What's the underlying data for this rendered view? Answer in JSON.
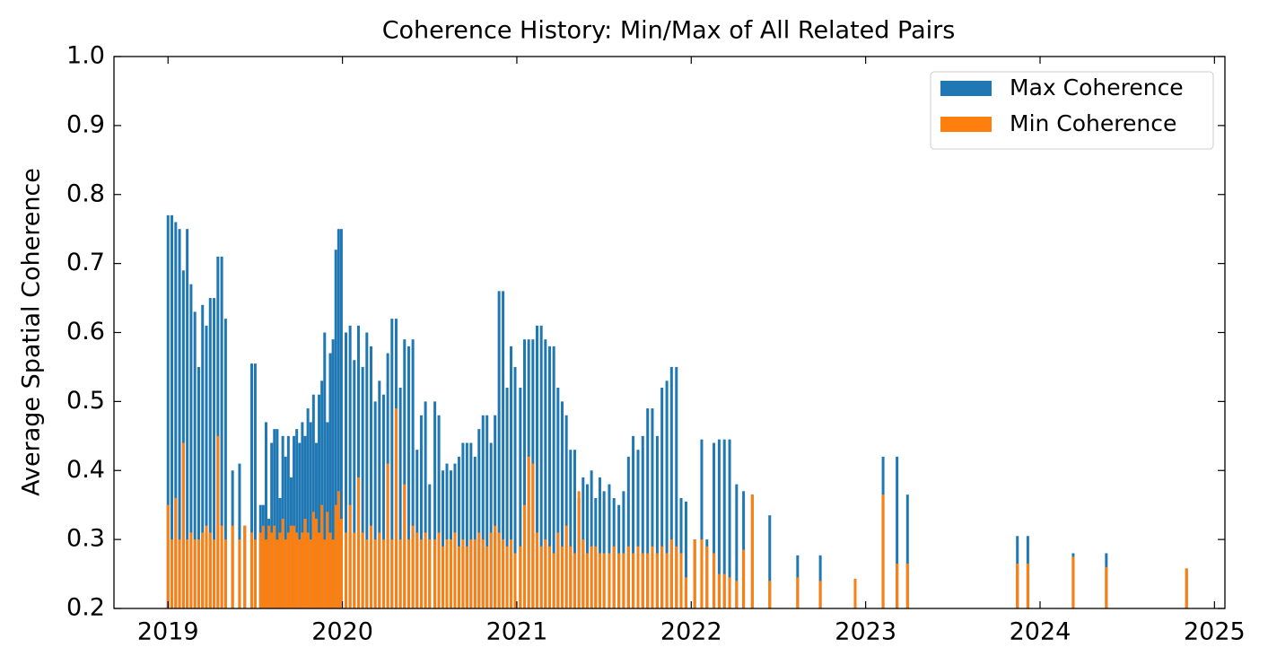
{
  "chart_data": {
    "type": "bar",
    "title": "Coherence History: Min/Max of All Related Pairs",
    "y_label": "Average Spatial Coherence",
    "x": [
      2019,
      2019.022,
      2019.044,
      2019.066,
      2019.088,
      2019.11,
      2019.132,
      2019.154,
      2019.176,
      2019.198,
      2019.22,
      2019.242,
      2019.264,
      2019.286,
      2019.308,
      2019.33,
      2019.37,
      2019.41,
      2019.44,
      2019.48,
      2019.5,
      2019.53,
      2019.546,
      2019.562,
      2019.578,
      2019.594,
      2019.61,
      2019.626,
      2019.642,
      2019.658,
      2019.674,
      2019.69,
      2019.706,
      2019.722,
      2019.738,
      2019.754,
      2019.77,
      2019.786,
      2019.802,
      2019.818,
      2019.834,
      2019.85,
      2019.866,
      2019.882,
      2019.898,
      2019.914,
      2019.93,
      2019.946,
      2019.962,
      2019.978,
      2019.994,
      2020.02,
      2020.044,
      2020.068,
      2020.092,
      2020.116,
      2020.14,
      2020.164,
      2020.188,
      2020.212,
      2020.236,
      2020.26,
      2020.284,
      2020.308,
      2020.332,
      2020.356,
      2020.38,
      2020.404,
      2020.428,
      2020.452,
      2020.476,
      2020.5,
      2020.53,
      2020.553,
      2020.576,
      2020.599,
      2020.622,
      2020.645,
      2020.668,
      2020.691,
      2020.714,
      2020.737,
      2020.76,
      2020.783,
      2020.806,
      2020.829,
      2020.852,
      2020.875,
      2020.898,
      2020.921,
      2020.944,
      2020.967,
      2020.99,
      2021.02,
      2021.044,
      2021.068,
      2021.092,
      2021.116,
      2021.14,
      2021.164,
      2021.188,
      2021.212,
      2021.236,
      2021.26,
      2021.284,
      2021.308,
      2021.332,
      2021.356,
      2021.38,
      2021.404,
      2021.428,
      2021.452,
      2021.476,
      2021.5,
      2021.53,
      2021.557,
      2021.585,
      2021.612,
      2021.64,
      2021.667,
      2021.695,
      2021.722,
      2021.75,
      2021.777,
      2021.805,
      2021.832,
      2021.86,
      2021.887,
      2021.915,
      2021.942,
      2021.97,
      2022.02,
      2022.06,
      2022.09,
      2022.13,
      2022.16,
      2022.19,
      2022.22,
      2022.26,
      2022.3,
      2022.35,
      2022.45,
      2022.61,
      2022.74,
      2022.94,
      2023.1,
      2023.18,
      2023.24,
      2023.87,
      2023.93,
      2024.19,
      2024.38,
      2024.84
    ],
    "series": [
      {
        "name": "Max Coherence",
        "color": "#1f77b4",
        "values": [
          0.77,
          0.77,
          0.76,
          0.75,
          0.69,
          0.75,
          0.67,
          0.63,
          0.55,
          0.64,
          0.61,
          0.65,
          0.65,
          0.71,
          0.71,
          0.62,
          0.4,
          0.41,
          0.32,
          0.555,
          0.555,
          0.35,
          0.35,
          0.47,
          0.33,
          0.44,
          0.46,
          0.46,
          0.36,
          0.45,
          0.42,
          0.45,
          0.39,
          0.45,
          0.46,
          0.44,
          0.47,
          0.45,
          0.49,
          0.47,
          0.51,
          0.44,
          0.51,
          0.53,
          0.6,
          0.47,
          0.57,
          0.59,
          0.72,
          0.75,
          0.75,
          0.6,
          0.61,
          0.56,
          0.61,
          0.55,
          0.6,
          0.58,
          0.5,
          0.53,
          0.51,
          0.57,
          0.62,
          0.62,
          0.52,
          0.59,
          0.58,
          0.59,
          0.43,
          0.48,
          0.5,
          0.38,
          0.5,
          0.48,
          0.4,
          0.41,
          0.4,
          0.41,
          0.42,
          0.44,
          0.44,
          0.44,
          0.42,
          0.46,
          0.48,
          0.48,
          0.44,
          0.48,
          0.66,
          0.66,
          0.52,
          0.58,
          0.55,
          0.52,
          0.59,
          0.59,
          0.59,
          0.61,
          0.61,
          0.59,
          0.58,
          0.58,
          0.52,
          0.5,
          0.48,
          0.43,
          0.43,
          0.36,
          0.39,
          0.38,
          0.4,
          0.36,
          0.39,
          0.37,
          0.38,
          0.36,
          0.35,
          0.37,
          0.42,
          0.45,
          0.43,
          0.45,
          0.49,
          0.49,
          0.45,
          0.52,
          0.53,
          0.55,
          0.55,
          0.36,
          0.355,
          0.3,
          0.445,
          0.3,
          0.44,
          0.445,
          0.445,
          0.445,
          0.38,
          0.37,
          0.365,
          0.335,
          0.277,
          0.277,
          0.243,
          0.42,
          0.42,
          0.365,
          0.305,
          0.305,
          0.28,
          0.28,
          0.258
        ]
      },
      {
        "name": "Min Coherence",
        "color": "#ff7f0e",
        "values": [
          0.35,
          0.3,
          0.36,
          0.3,
          0.44,
          0.3,
          0.31,
          0.3,
          0.3,
          0.31,
          0.32,
          0.31,
          0.3,
          0.45,
          0.32,
          0.3,
          0.32,
          0.3,
          0.32,
          0.31,
          0.3,
          0.31,
          0.32,
          0.3,
          0.32,
          0.31,
          0.32,
          0.3,
          0.31,
          0.33,
          0.3,
          0.31,
          0.32,
          0.32,
          0.31,
          0.3,
          0.31,
          0.33,
          0.31,
          0.3,
          0.34,
          0.33,
          0.31,
          0.35,
          0.3,
          0.34,
          0.31,
          0.3,
          0.35,
          0.37,
          0.33,
          0.31,
          0.35,
          0.31,
          0.39,
          0.31,
          0.3,
          0.32,
          0.3,
          0.31,
          0.3,
          0.41,
          0.3,
          0.49,
          0.3,
          0.38,
          0.3,
          0.32,
          0.31,
          0.3,
          0.31,
          0.3,
          0.3,
          0.31,
          0.29,
          0.3,
          0.3,
          0.31,
          0.29,
          0.3,
          0.29,
          0.3,
          0.3,
          0.31,
          0.3,
          0.29,
          0.31,
          0.32,
          0.31,
          0.3,
          0.29,
          0.3,
          0.28,
          0.29,
          0.35,
          0.42,
          0.41,
          0.31,
          0.29,
          0.3,
          0.29,
          0.28,
          0.31,
          0.29,
          0.32,
          0.29,
          0.28,
          0.37,
          0.3,
          0.28,
          0.29,
          0.29,
          0.28,
          0.28,
          0.28,
          0.29,
          0.28,
          0.28,
          0.29,
          0.28,
          0.29,
          0.28,
          0.28,
          0.29,
          0.28,
          0.29,
          0.28,
          0.3,
          0.29,
          0.28,
          0.245,
          0.3,
          0.3,
          0.29,
          0.28,
          0.25,
          0.25,
          0.245,
          0.24,
          0.285,
          0.365,
          0.24,
          0.245,
          0.24,
          0.243,
          0.365,
          0.265,
          0.265,
          0.265,
          0.265,
          0.275,
          0.26,
          0.258
        ]
      }
    ],
    "xlim": [
      2018.69,
      2025.06
    ],
    "xticks": [
      2019,
      2020,
      2021,
      2022,
      2023,
      2024,
      2025
    ],
    "ylim": [
      0.2,
      1.0
    ],
    "yticks": [
      0.2,
      0.3,
      0.4,
      0.5,
      0.6,
      0.7,
      0.8,
      0.9,
      {
        "value": 1.0,
        "label": "1.0"
      }
    ],
    "legend": "upper right"
  }
}
